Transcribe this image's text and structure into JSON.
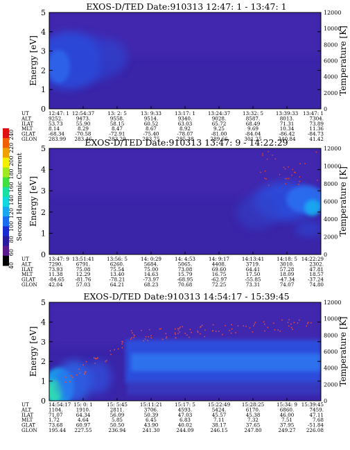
{
  "colorbar": {
    "label": "Second Harmonic Current",
    "ticks": [
      40,
      60,
      80,
      100,
      120,
      140,
      160,
      180,
      200,
      220,
      240
    ],
    "range": [
      40,
      250
    ],
    "colors": [
      "#000000",
      "#5a1a8c",
      "#2a1a9c",
      "#1a2cd0",
      "#1a6cf0",
      "#18a8f0",
      "#10d8e0",
      "#18e0a0",
      "#40e040",
      "#a0e820",
      "#f0f000",
      "#f0a000",
      "#f06000",
      "#e01010"
    ]
  },
  "panel_axes": {
    "y_ticks": [
      0,
      1,
      2,
      3,
      4,
      5
    ],
    "y_label": "Energy [eV]",
    "y2_ticks": [
      0,
      2000,
      4000,
      6000,
      8000,
      10000,
      12000
    ],
    "y2_label": "Temperature [K]"
  },
  "chart_data": [
    {
      "type": "heatmap",
      "title": "EXOS-D/TED   Date:910313  12:47: 1 - 13:47: 1",
      "ylim": [
        0,
        5
      ],
      "y2lim": [
        0,
        12000
      ],
      "row_labels": [
        "UT",
        "ALT",
        "ILAT",
        "MLT",
        "GLAT",
        "GLON"
      ],
      "columns": [
        [
          "12:47: 1",
          "9252.",
          "53.73",
          "8.14",
          "-68.34",
          "283.99"
        ],
        [
          "12:54:37",
          "9473.",
          "55.90",
          "8.29",
          "-70.58",
          "283.46"
        ],
        [
          "13: 2: 5",
          "9558.",
          "58.15",
          "8.47",
          "-72.91",
          "283.29"
        ],
        [
          "13: 9:33",
          "9514.",
          "60.52",
          "8.67",
          "-75.40",
          "283.75"
        ],
        [
          "13:17: 1",
          "9340.",
          "63.03",
          "8.92",
          "-78.07",
          "285.38"
        ],
        [
          "13:24:37",
          "9028.",
          "65.72",
          "9.25",
          "-81.00",
          "289.66"
        ],
        [
          "13:32: 5",
          "8587.",
          "68.49",
          "9.69",
          "-84.04",
          "301.25"
        ],
        [
          "13:39:33",
          "8013.",
          "71.31",
          "10.34",
          "-86.42",
          "340.84"
        ],
        [
          "13:47: 1",
          "7304.",
          "73.89",
          "11.36",
          "-84.73",
          "41.42"
        ]
      ]
    },
    {
      "type": "heatmap",
      "title": "EXOS-D/TED   Date:910313  13:47: 9 - 14:22:29",
      "ylim": [
        0,
        5
      ],
      "y2lim": [
        0,
        12000
      ],
      "row_labels": [
        "UT",
        "ALT",
        "ILAT",
        "MLT",
        "GLAT",
        "GLON"
      ],
      "columns": [
        [
          "13:47: 9",
          "7290.",
          "73.93",
          "11.38",
          "-84.65",
          "42.04"
        ],
        [
          "13:51:41",
          "6791.",
          "75.08",
          "12.29",
          "-81.76",
          "57.03"
        ],
        [
          "13:56: 5",
          "6260.",
          "75.54",
          "13.40",
          "-78.21",
          "64.21"
        ],
        [
          "14: 0:29",
          "5684.",
          "75.00",
          "14.63",
          "-73.97",
          "68.23"
        ],
        [
          "14: 4:53",
          "5065.",
          "73.08",
          "15.79",
          "-68.95",
          "70.68"
        ],
        [
          "14: 9:17",
          "4408.",
          "69.60",
          "16.75",
          "-62.97",
          "72.25"
        ],
        [
          "14:13:41",
          "3719.",
          "64.41",
          "17.50",
          "-55.85",
          "73.31"
        ],
        [
          "14:18: 5",
          "3010.",
          "57.28",
          "18.09",
          "-47.34",
          "74.07"
        ],
        [
          "14:22:29",
          "2302.",
          "47.81",
          "18.57",
          "-37.24",
          "74.80"
        ]
      ]
    },
    {
      "type": "heatmap",
      "title": "EXOS-D/TED   Date:910313  14:54:17 - 15:39:45",
      "ylim": [
        0,
        5
      ],
      "y2lim": [
        0,
        12000
      ],
      "row_labels": [
        "UT",
        "ALT",
        "ILAT",
        "MLT",
        "GLAT",
        "GLON"
      ],
      "columns": [
        [
          "14:54:17",
          "1104.",
          "71.07",
          "1.72",
          "73.68",
          "195.44"
        ],
        [
          "15: 0: 1",
          "1910.",
          "64.34",
          "4.64",
          "60.97",
          "227.55"
        ],
        [
          "15: 5:45",
          "2811.",
          "56.09",
          "5.85",
          "50.50",
          "236.94"
        ],
        [
          "15:11:21",
          "3706.",
          "50.39",
          "6.45",
          "43.90",
          "241.30"
        ],
        [
          "15:17: 5",
          "4593.",
          "47.03",
          "6.83",
          "40.02",
          "244.09"
        ],
        [
          "15:22:49",
          "5424.",
          "45.57",
          "7.11",
          "38.17",
          "246.15"
        ],
        [
          "15:28:25",
          "6170.",
          "45.38",
          "7.32",
          "37.65",
          "247.80"
        ],
        [
          "15:34: 9",
          "6860.",
          "46.00",
          "7.51",
          "37.95",
          "249.27"
        ],
        [
          "15:39:45",
          "7459.",
          "47.11",
          "7.68",
          "-51.84",
          "226.08"
        ]
      ]
    }
  ]
}
